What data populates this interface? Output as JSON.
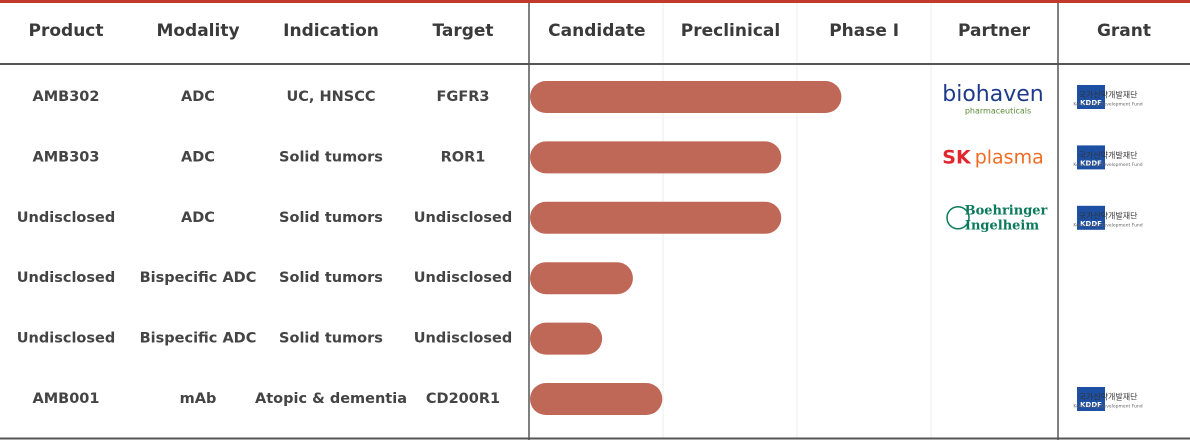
{
  "header": {
    "columns": [
      "Product",
      "Modality",
      "Indication",
      "Target"
    ],
    "stages": [
      "Candidate",
      "Preclinical",
      "Phase I"
    ],
    "partner": "Partner",
    "grant": "Grant"
  },
  "rows": [
    {
      "product": "AMB302",
      "modality": "ADC",
      "indication": "UC, HNSCC",
      "target": "FGFR3",
      "progress": 2.33,
      "partner": {
        "text": "biohaven",
        "sub": "pharmaceuticals",
        "color": "#1e3a8a"
      },
      "grant": {
        "abbr": "KDDF",
        "name": "국가신약개발재단",
        "sub": "Korea Drug Development Fund"
      }
    },
    {
      "product": "AMB303",
      "modality": "ADC",
      "indication": "Solid tumors",
      "target": "ROR1",
      "progress": 1.88,
      "partner": {
        "text": "SK",
        "text2": "plasma",
        "color": "#e1262d",
        "color2": "#f26b22"
      },
      "grant": {
        "abbr": "KDDF",
        "name": "국가신약개발재단",
        "sub": "Korea Drug Development Fund"
      }
    },
    {
      "product": "Undisclosed",
      "modality": "ADC",
      "indication": "Solid tumors",
      "target": "Undisclosed",
      "progress": 1.88,
      "partner": {
        "text": "Boehringer",
        "sub": "Ingelheim",
        "color": "#0b7a5c"
      },
      "grant": {
        "abbr": "KDDF",
        "name": "국가신약개발재단",
        "sub": "Korea Drug Development Fund"
      }
    },
    {
      "product": "Undisclosed",
      "modality": "Bispecific ADC",
      "indication": "Solid tumors",
      "target": "Undisclosed",
      "progress": 0.77
    },
    {
      "product": "Undisclosed",
      "modality": "Bispecific ADC",
      "indication": "Solid tumors",
      "target": "Undisclosed",
      "progress": 0.54
    },
    {
      "product": "AMB001",
      "modality": "mAb",
      "indication": "Atopic & dementia",
      "target": "CD200R1",
      "progress": 0.99,
      "grant": {
        "abbr": "KDDF",
        "name": "국가신약개발재단",
        "sub": "Korea Drug Development Fund"
      }
    }
  ]
}
